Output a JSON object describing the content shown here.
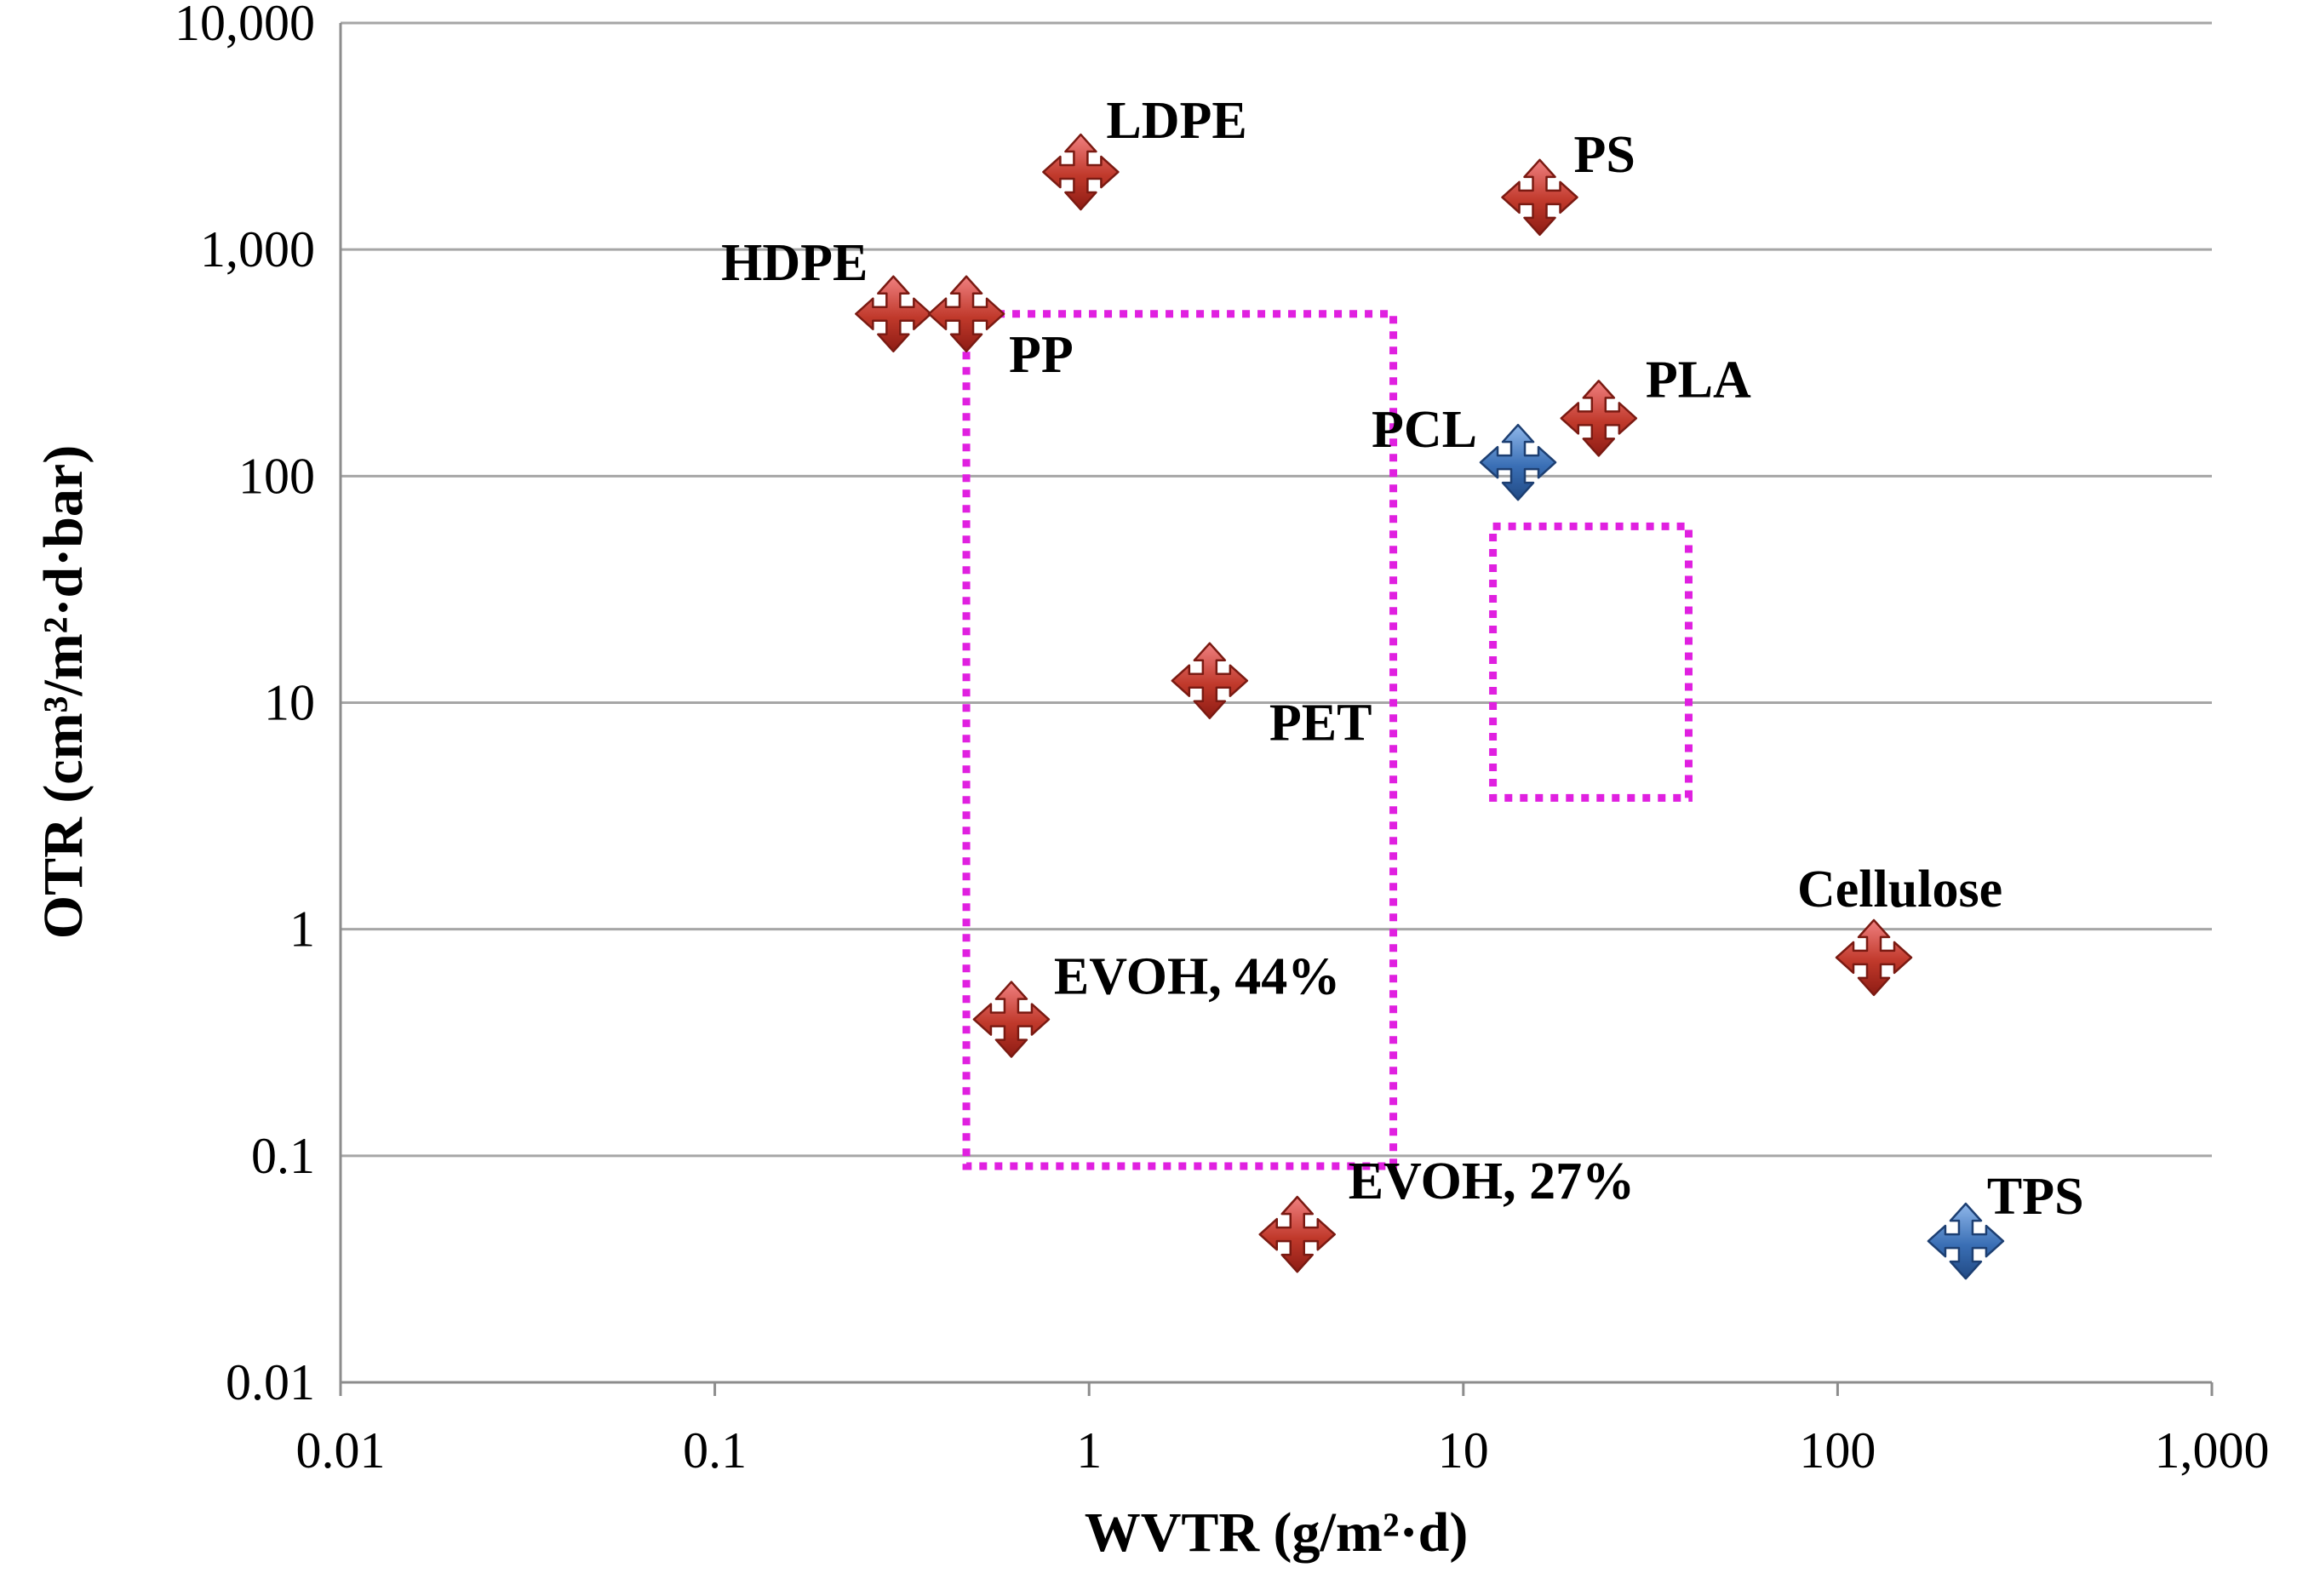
{
  "chart_data": {
    "type": "scatter",
    "xscale": "log",
    "yscale": "log",
    "xlabel": "WVTR (g/m²·d)",
    "ylabel": "OTR (cm³/m²·d·bar)",
    "xlim": [
      0.01,
      1000
    ],
    "ylim": [
      0.01,
      10000
    ],
    "x_ticks": [
      0.01,
      0.1,
      1,
      10,
      100,
      1000
    ],
    "x_tick_labels": [
      "0.01",
      "0.1",
      "1",
      "10",
      "100",
      "1,000"
    ],
    "y_ticks": [
      0.01,
      0.1,
      1,
      10,
      100,
      1000,
      10000
    ],
    "y_tick_labels": [
      "0.01",
      "0.1",
      "1",
      "10",
      "100",
      "1,000",
      "10,000"
    ],
    "grid": "horizontal",
    "colors": {
      "petroleum": "#c0392b",
      "biobased": "#3a6fb5",
      "region_outline": "#e020e0"
    },
    "points": [
      {
        "name": "HDPE",
        "label": "HDPE",
        "x": 0.3,
        "y": 520,
        "group": "petroleum",
        "label_pos": "upper-left"
      },
      {
        "name": "PP",
        "label": "PP",
        "x": 0.47,
        "y": 520,
        "group": "petroleum",
        "label_pos": "lower-right"
      },
      {
        "name": "LDPE",
        "label": "LDPE",
        "x": 0.95,
        "y": 2200,
        "group": "petroleum",
        "label_pos": "upper-right"
      },
      {
        "name": "PS",
        "label": "PS",
        "x": 16,
        "y": 1700,
        "group": "petroleum",
        "label_pos": "upper-right"
      },
      {
        "name": "PLA",
        "label": "PLA",
        "x": 23,
        "y": 180,
        "group": "petroleum",
        "label_pos": "upper-right"
      },
      {
        "name": "PCL",
        "label": "PCL",
        "x": 14,
        "y": 115,
        "group": "biobased",
        "label_pos": "upper-left"
      },
      {
        "name": "PET",
        "label": "PET",
        "x": 2.1,
        "y": 12.5,
        "group": "petroleum",
        "label_pos": "lower-right"
      },
      {
        "name": "EVOH-44",
        "label": "EVOH, 44%",
        "x": 0.62,
        "y": 0.4,
        "group": "petroleum",
        "label_pos": "upper-right"
      },
      {
        "name": "EVOH-27",
        "label": "EVOH, 27%",
        "x": 3.6,
        "y": 0.045,
        "group": "petroleum",
        "label_pos": "upper-right"
      },
      {
        "name": "Cellulose",
        "label": "Cellulose",
        "x": 125,
        "y": 0.75,
        "group": "petroleum",
        "label_pos": "upper-right"
      },
      {
        "name": "TPS",
        "label": "TPS",
        "x": 220,
        "y": 0.042,
        "group": "biobased",
        "label_pos": "upper-right"
      }
    ],
    "regions": [
      {
        "name": "target-region-left",
        "x": [
          0.47,
          6.5
        ],
        "y": [
          0.09,
          520
        ],
        "style": "dotted"
      },
      {
        "name": "target-region-right",
        "x": [
          12,
          40
        ],
        "y": [
          3.8,
          60
        ],
        "style": "dotted"
      }
    ]
  }
}
